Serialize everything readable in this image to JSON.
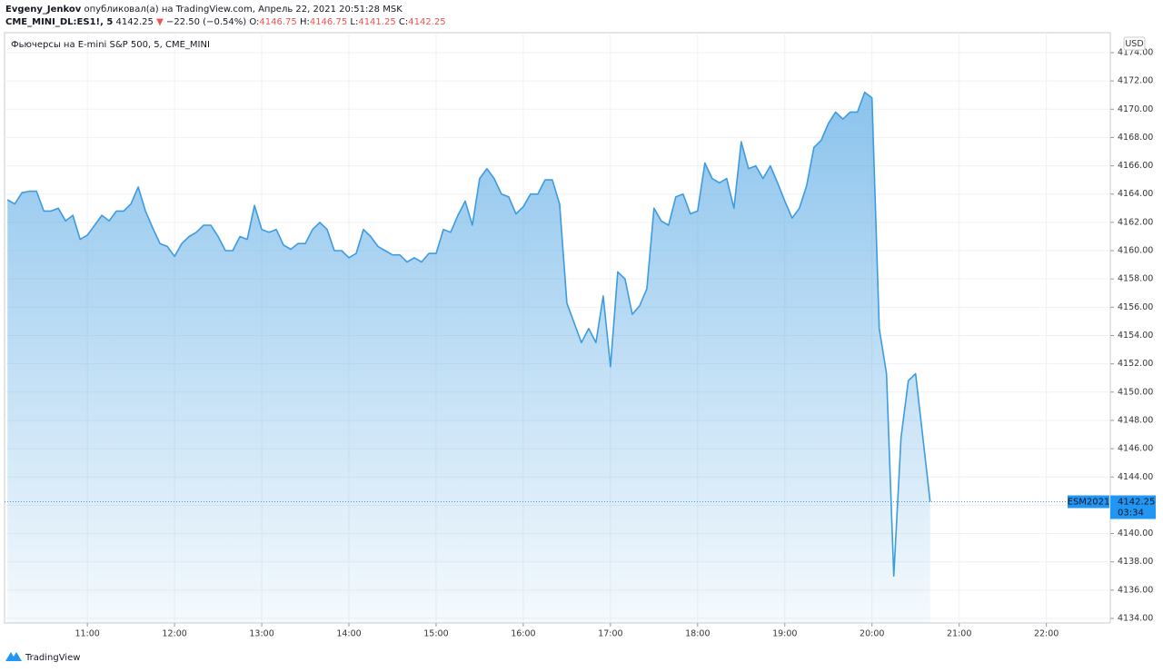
{
  "header": {
    "author": "Evgeny_Jenkov",
    "published": "опубликовал(а) на TradingView.com, Апрель 22, 2021 20:51:28 MSK",
    "symbol": "CME_MINI_DL:ES1!, 5",
    "price": "4142.25",
    "arrow": "▼",
    "change": "−22.50 (−0.54%)",
    "o_label": "O:",
    "o": "4146.75",
    "h_label": "H:",
    "h": "4146.75",
    "l_label": "L:",
    "l": "4141.25",
    "c_label": "C:",
    "c": "4142.25"
  },
  "footer": {
    "brand": "TradingView"
  },
  "chart_data": {
    "type": "area",
    "title": "Фьючерсы на E-mini S&P 500, 5, CME_MINI",
    "currency": "USD",
    "color": "#3d9be0",
    "grid": true,
    "x": [
      "10:05",
      "10:10",
      "10:15",
      "10:20",
      "10:25",
      "10:30",
      "10:35",
      "10:40",
      "10:45",
      "10:50",
      "10:55",
      "11:00",
      "11:05",
      "11:10",
      "11:15",
      "11:20",
      "11:25",
      "11:30",
      "11:35",
      "11:40",
      "11:45",
      "11:50",
      "11:55",
      "12:00",
      "12:05",
      "12:10",
      "12:15",
      "12:20",
      "12:25",
      "12:30",
      "12:35",
      "12:40",
      "12:45",
      "12:50",
      "12:55",
      "13:00",
      "13:05",
      "13:10",
      "13:15",
      "13:20",
      "13:25",
      "13:30",
      "13:35",
      "13:40",
      "13:45",
      "13:50",
      "13:55",
      "14:00",
      "14:05",
      "14:10",
      "14:15",
      "14:20",
      "14:25",
      "14:30",
      "14:35",
      "14:40",
      "14:45",
      "14:50",
      "14:55",
      "15:00",
      "15:05",
      "15:10",
      "15:15",
      "15:20",
      "15:25",
      "15:30",
      "15:35",
      "15:40",
      "15:45",
      "15:50",
      "15:55",
      "16:00",
      "16:05",
      "16:10",
      "16:15",
      "16:20",
      "16:25",
      "16:30",
      "16:35",
      "16:40",
      "16:45",
      "16:50",
      "16:55",
      "17:00",
      "17:05",
      "17:10",
      "17:15",
      "17:20",
      "17:25",
      "17:30",
      "17:35",
      "17:40",
      "17:45",
      "17:50",
      "17:55",
      "18:00",
      "18:05",
      "18:10",
      "18:15",
      "18:20",
      "18:25",
      "18:30",
      "18:35",
      "18:40",
      "18:45",
      "18:50",
      "18:55",
      "19:00",
      "19:05",
      "19:10",
      "19:15",
      "19:20",
      "19:25",
      "19:30",
      "19:35",
      "19:40",
      "19:45",
      "19:50",
      "19:55",
      "20:00",
      "20:05",
      "20:10",
      "20:15",
      "20:20",
      "20:25",
      "20:30",
      "20:35",
      "20:40"
    ],
    "values": [
      4163.6,
      4163.3,
      4164.1,
      4164.2,
      4164.2,
      4162.8,
      4162.8,
      4163.0,
      4162.1,
      4162.5,
      4160.8,
      4161.1,
      4161.8,
      4162.5,
      4162.1,
      4162.8,
      4162.8,
      4163.3,
      4164.5,
      4162.8,
      4161.6,
      4160.5,
      4160.3,
      4159.6,
      4160.5,
      4161.0,
      4161.3,
      4161.8,
      4161.8,
      4161.0,
      4160.0,
      4160.0,
      4161.0,
      4160.8,
      4163.2,
      4161.5,
      4161.3,
      4161.5,
      4160.4,
      4160.1,
      4160.5,
      4160.5,
      4161.5,
      4162.0,
      4161.5,
      4160.0,
      4160.0,
      4159.5,
      4159.8,
      4161.5,
      4161.0,
      4160.3,
      4160.0,
      4159.7,
      4159.7,
      4159.2,
      4159.5,
      4159.2,
      4159.8,
      4159.8,
      4161.5,
      4161.3,
      4162.5,
      4163.5,
      4161.8,
      4165.1,
      4165.8,
      4165.1,
      4164.0,
      4163.8,
      4162.6,
      4163.1,
      4164.0,
      4164.0,
      4165.0,
      4165.0,
      4163.3,
      4156.3,
      4154.9,
      4153.5,
      4154.5,
      4153.5,
      4156.8,
      4151.8,
      4158.5,
      4158.0,
      4155.5,
      4156.1,
      4157.3,
      4163.0,
      4162.1,
      4161.8,
      4163.8,
      4164.0,
      4162.6,
      4162.8,
      4166.2,
      4165.1,
      4164.8,
      4165.1,
      4163.0,
      4167.7,
      4165.8,
      4166.0,
      4165.1,
      4166.0,
      4164.8,
      4163.5,
      4162.3,
      4163.0,
      4164.6,
      4167.3,
      4167.8,
      4169.0,
      4169.8,
      4169.3,
      4169.8,
      4169.8,
      4171.2,
      4170.8,
      4154.5,
      4151.3,
      4137.0,
      4146.8,
      4150.8,
      4151.3,
      4146.8,
      4142.25
    ],
    "xlim": [
      "10:03",
      "22:44"
    ],
    "xticks": [
      "11:00",
      "12:00",
      "13:00",
      "14:00",
      "15:00",
      "16:00",
      "17:00",
      "18:00",
      "19:00",
      "20:00",
      "21:00",
      "22:00"
    ],
    "ylim": [
      4133.68,
      4175.41
    ],
    "yticks": [
      {
        "value": 4134,
        "label": "4134.00"
      },
      {
        "value": 4136,
        "label": "4136.00"
      },
      {
        "value": 4138,
        "label": "4138.00"
      },
      {
        "value": 4140,
        "label": "4140.00"
      },
      {
        "value": 4142,
        "label": "4142.00"
      },
      {
        "value": 4144,
        "label": "4144.00"
      },
      {
        "value": 4146,
        "label": "4146.00"
      },
      {
        "value": 4148,
        "label": "4148.00"
      },
      {
        "value": 4150,
        "label": "4150.00"
      },
      {
        "value": 4152,
        "label": "4152.00"
      },
      {
        "value": 4154,
        "label": "4154.00"
      },
      {
        "value": 4156,
        "label": "4156.00"
      },
      {
        "value": 4158,
        "label": "4158.00"
      },
      {
        "value": 4160,
        "label": "4160.00"
      },
      {
        "value": 4162,
        "label": "4162.00"
      },
      {
        "value": 4164,
        "label": "4164.00"
      },
      {
        "value": 4166,
        "label": "4166.00"
      },
      {
        "value": 4168,
        "label": "4168.00"
      },
      {
        "value": 4170,
        "label": "4170.00"
      },
      {
        "value": 4172,
        "label": "4172.00"
      },
      {
        "value": 4174,
        "label": "4174.00"
      }
    ],
    "last_price": {
      "label": "ESM2021",
      "value": 4142.25,
      "countdown": "03:34"
    }
  }
}
